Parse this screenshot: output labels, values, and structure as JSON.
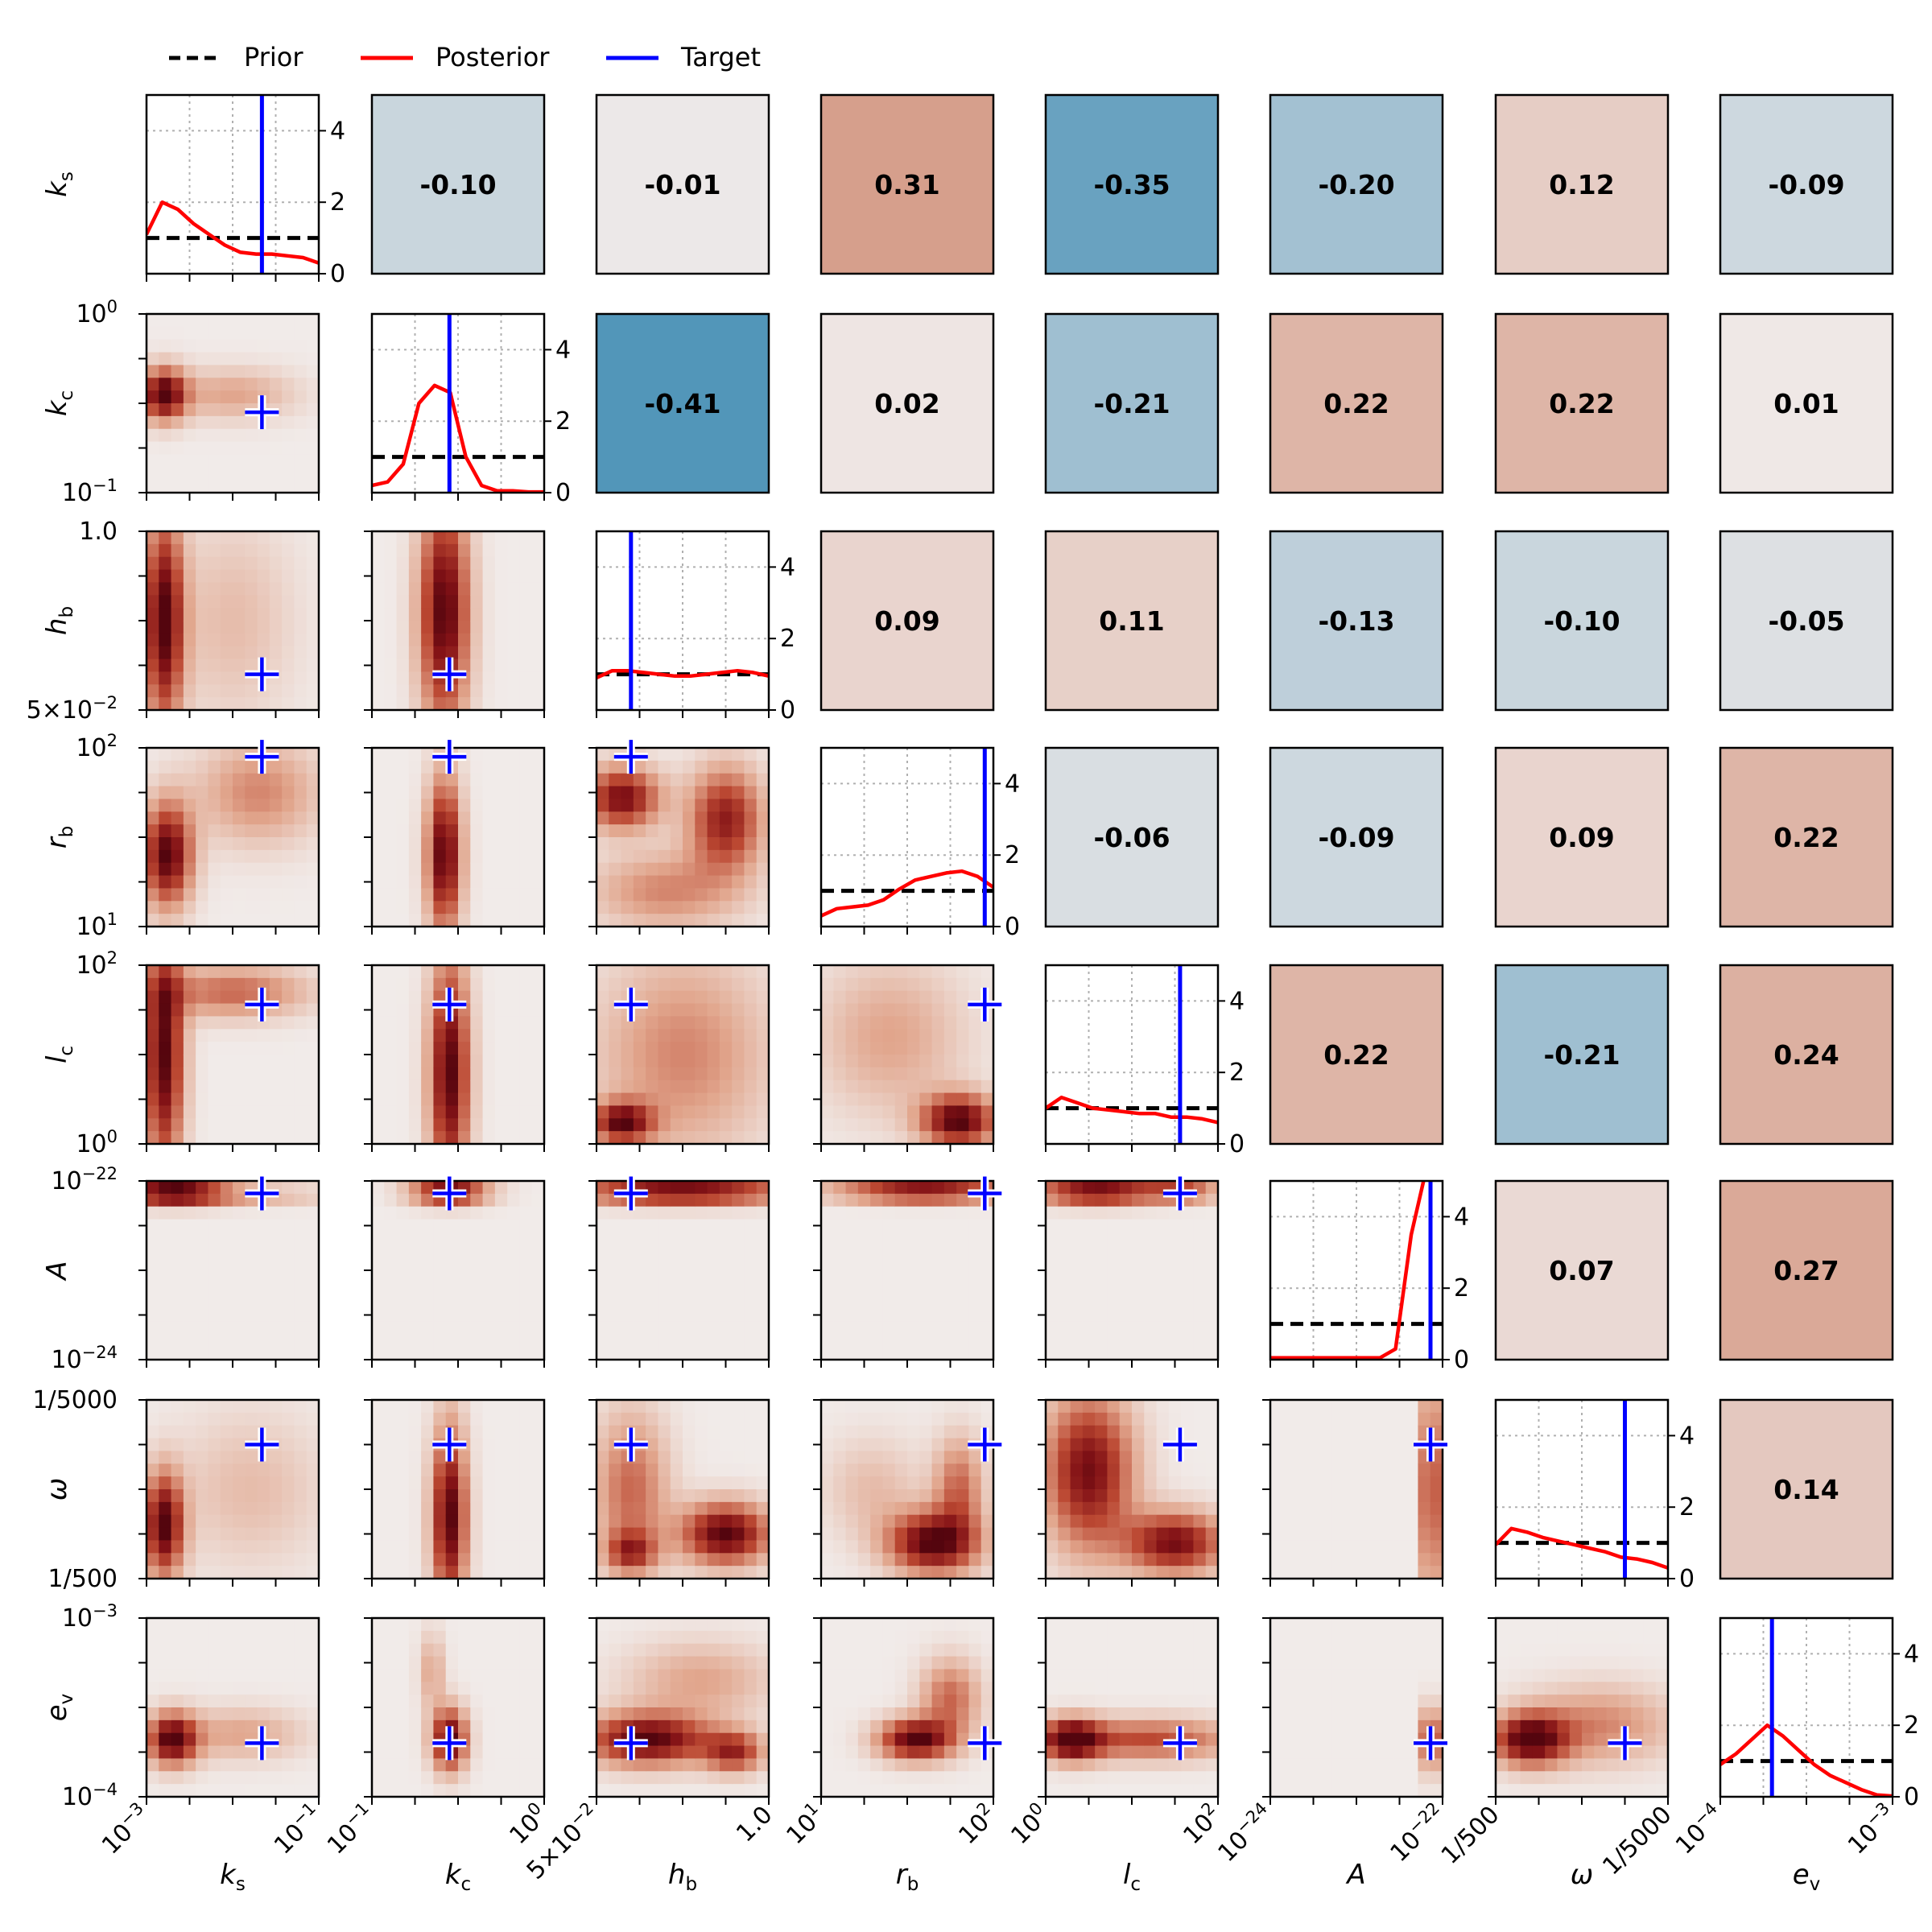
{
  "chart_data": {
    "type": "corner-plot",
    "title": "",
    "legend": [
      {
        "label": "Prior",
        "color": "#000000",
        "style": "dashed"
      },
      {
        "label": "Posterior",
        "color": "#ff0000",
        "style": "solid"
      },
      {
        "label": "Target",
        "color": "#0000ff",
        "style": "solid"
      }
    ],
    "parameters": [
      {
        "name": "k_s",
        "sym": "k",
        "sub": "s",
        "lo_label": "10^-3",
        "hi_label": "10^-1"
      },
      {
        "name": "k_c",
        "sym": "k",
        "sub": "c",
        "lo_label": "10^-1",
        "hi_label": "10^0"
      },
      {
        "name": "h_b",
        "sym": "h",
        "sub": "b",
        "lo_label": "5×10^-2",
        "hi_label": "1.0"
      },
      {
        "name": "r_b",
        "sym": "r",
        "sub": "b",
        "lo_label": "10^1",
        "hi_label": "10^2"
      },
      {
        "name": "l_c",
        "sym": "l",
        "sub": "c",
        "lo_label": "10^0",
        "hi_label": "10^2"
      },
      {
        "name": "A",
        "sym": "A",
        "sub": "",
        "lo_label": "10^-24",
        "hi_label": "10^-22"
      },
      {
        "name": "omega",
        "sym": "ω",
        "sub": "",
        "lo_label": "1/500",
        "hi_label": "1/5000"
      },
      {
        "name": "e_v",
        "sym": "e",
        "sub": "v",
        "lo_label": "10^-4",
        "hi_label": "10^-3"
      }
    ],
    "target_fraction": [
      0.67,
      0.45,
      0.2,
      0.95,
      0.78,
      0.93,
      0.75,
      0.3
    ],
    "diag_ylim": [
      0,
      5
    ],
    "diag_yticks": [
      0,
      2,
      4
    ],
    "prior_density": 1.0,
    "posterior_density": [
      [
        1.1,
        2.0,
        1.8,
        1.4,
        1.1,
        0.8,
        0.6,
        0.55,
        0.55,
        0.5,
        0.45,
        0.3
      ],
      [
        0.2,
        0.3,
        0.8,
        2.5,
        3.0,
        2.8,
        1.0,
        0.2,
        0.05,
        0.05,
        0.02,
        0.02
      ],
      [
        0.9,
        1.1,
        1.1,
        1.05,
        1.0,
        0.95,
        0.95,
        1.0,
        1.05,
        1.1,
        1.05,
        0.95
      ],
      [
        0.3,
        0.5,
        0.55,
        0.6,
        0.75,
        1.05,
        1.3,
        1.4,
        1.5,
        1.55,
        1.4,
        1.1
      ],
      [
        1.0,
        1.3,
        1.15,
        1.0,
        0.95,
        0.9,
        0.85,
        0.85,
        0.75,
        0.75,
        0.7,
        0.6
      ],
      [
        0.05,
        0.05,
        0.05,
        0.05,
        0.05,
        0.05,
        0.05,
        0.05,
        0.3,
        3.5,
        6.0,
        6.0
      ],
      [
        0.95,
        1.4,
        1.3,
        1.15,
        1.05,
        0.95,
        0.85,
        0.75,
        0.6,
        0.55,
        0.45,
        0.3
      ],
      [
        0.9,
        1.2,
        1.6,
        2.0,
        1.7,
        1.3,
        0.9,
        0.6,
        0.4,
        0.2,
        0.05,
        0.02
      ]
    ],
    "correlations": [
      {
        "row": 0,
        "col": 1,
        "value": "-0.10"
      },
      {
        "row": 0,
        "col": 2,
        "value": "-0.01"
      },
      {
        "row": 0,
        "col": 3,
        "value": "0.31"
      },
      {
        "row": 0,
        "col": 4,
        "value": "-0.35"
      },
      {
        "row": 0,
        "col": 5,
        "value": "-0.20"
      },
      {
        "row": 0,
        "col": 6,
        "value": "0.12"
      },
      {
        "row": 0,
        "col": 7,
        "value": "-0.09"
      },
      {
        "row": 1,
        "col": 2,
        "value": "-0.41"
      },
      {
        "row": 1,
        "col": 3,
        "value": "0.02"
      },
      {
        "row": 1,
        "col": 4,
        "value": "-0.21"
      },
      {
        "row": 1,
        "col": 5,
        "value": "0.22"
      },
      {
        "row": 1,
        "col": 6,
        "value": "0.22"
      },
      {
        "row": 1,
        "col": 7,
        "value": "0.01"
      },
      {
        "row": 2,
        "col": 3,
        "value": "0.09"
      },
      {
        "row": 2,
        "col": 4,
        "value": "0.11"
      },
      {
        "row": 2,
        "col": 5,
        "value": "-0.13"
      },
      {
        "row": 2,
        "col": 6,
        "value": "-0.10"
      },
      {
        "row": 2,
        "col": 7,
        "value": "-0.05"
      },
      {
        "row": 3,
        "col": 4,
        "value": "-0.06"
      },
      {
        "row": 3,
        "col": 5,
        "value": "-0.09"
      },
      {
        "row": 3,
        "col": 6,
        "value": "0.09"
      },
      {
        "row": 3,
        "col": 7,
        "value": "0.22"
      },
      {
        "row": 4,
        "col": 5,
        "value": "0.22"
      },
      {
        "row": 4,
        "col": 6,
        "value": "-0.21"
      },
      {
        "row": 4,
        "col": 7,
        "value": "0.24"
      },
      {
        "row": 5,
        "col": 6,
        "value": "0.07"
      },
      {
        "row": 5,
        "col": 7,
        "value": "0.27"
      },
      {
        "row": 6,
        "col": 7,
        "value": "0.14"
      }
    ],
    "joint_blobs": [
      {
        "row": 1,
        "col": 0,
        "blobs": [
          [
            0.1,
            0.45,
            0.09,
            0.1,
            1.0
          ],
          [
            0.5,
            0.45,
            0.25,
            0.1,
            0.3
          ]
        ]
      },
      {
        "row": 2,
        "col": 0,
        "blobs": [
          [
            0.1,
            0.5,
            0.08,
            0.4,
            1.0
          ],
          [
            0.5,
            0.5,
            0.25,
            0.4,
            0.2
          ]
        ]
      },
      {
        "row": 2,
        "col": 1,
        "blobs": [
          [
            0.42,
            0.45,
            0.1,
            0.45,
            1.0
          ]
        ]
      },
      {
        "row": 3,
        "col": 0,
        "blobs": [
          [
            0.12,
            0.6,
            0.1,
            0.2,
            1.0
          ],
          [
            0.65,
            0.25,
            0.25,
            0.2,
            0.4
          ]
        ]
      },
      {
        "row": 3,
        "col": 1,
        "blobs": [
          [
            0.42,
            0.6,
            0.07,
            0.3,
            1.0
          ]
        ]
      },
      {
        "row": 3,
        "col": 2,
        "blobs": [
          [
            0.15,
            0.28,
            0.15,
            0.12,
            0.9
          ],
          [
            0.75,
            0.4,
            0.15,
            0.2,
            0.8
          ],
          [
            0.4,
            0.8,
            0.3,
            0.15,
            0.4
          ]
        ]
      },
      {
        "row": 4,
        "col": 0,
        "blobs": [
          [
            0.1,
            0.5,
            0.08,
            0.45,
            1.0
          ],
          [
            0.5,
            0.15,
            0.3,
            0.1,
            0.5
          ]
        ]
      },
      {
        "row": 4,
        "col": 1,
        "blobs": [
          [
            0.45,
            0.6,
            0.08,
            0.45,
            1.0
          ]
        ]
      },
      {
        "row": 4,
        "col": 2,
        "blobs": [
          [
            0.15,
            0.88,
            0.12,
            0.08,
            0.9
          ],
          [
            0.5,
            0.5,
            0.35,
            0.4,
            0.4
          ]
        ]
      },
      {
        "row": 4,
        "col": 3,
        "blobs": [
          [
            0.8,
            0.87,
            0.15,
            0.1,
            1.0
          ],
          [
            0.4,
            0.4,
            0.3,
            0.3,
            0.3
          ]
        ]
      },
      {
        "row": 5,
        "col": 0,
        "blobs": [
          [
            0.15,
            0.06,
            0.2,
            0.05,
            1.0
          ],
          [
            0.5,
            0.08,
            0.4,
            0.04,
            0.3
          ]
        ]
      },
      {
        "row": 5,
        "col": 1,
        "blobs": [
          [
            0.45,
            0.06,
            0.15,
            0.05,
            1.0
          ]
        ]
      },
      {
        "row": 5,
        "col": 2,
        "blobs": [
          [
            0.5,
            0.06,
            0.45,
            0.05,
            1.0
          ]
        ]
      },
      {
        "row": 5,
        "col": 3,
        "blobs": [
          [
            0.6,
            0.06,
            0.35,
            0.04,
            1.0
          ]
        ]
      },
      {
        "row": 5,
        "col": 4,
        "blobs": [
          [
            0.3,
            0.06,
            0.25,
            0.05,
            1.0
          ],
          [
            0.8,
            0.06,
            0.15,
            0.04,
            0.6
          ]
        ]
      },
      {
        "row": 6,
        "col": 0,
        "blobs": [
          [
            0.1,
            0.7,
            0.08,
            0.2,
            1.0
          ],
          [
            0.6,
            0.5,
            0.3,
            0.3,
            0.2
          ]
        ]
      },
      {
        "row": 6,
        "col": 1,
        "blobs": [
          [
            0.45,
            0.65,
            0.07,
            0.35,
            1.0
          ]
        ]
      },
      {
        "row": 6,
        "col": 2,
        "blobs": [
          [
            0.75,
            0.75,
            0.18,
            0.12,
            1.0
          ],
          [
            0.2,
            0.5,
            0.15,
            0.3,
            0.5
          ],
          [
            0.2,
            0.85,
            0.1,
            0.08,
            0.6
          ]
        ]
      },
      {
        "row": 6,
        "col": 3,
        "blobs": [
          [
            0.65,
            0.8,
            0.18,
            0.12,
            1.0
          ],
          [
            0.8,
            0.5,
            0.1,
            0.2,
            0.5
          ],
          [
            0.3,
            0.5,
            0.2,
            0.2,
            0.2
          ]
        ]
      },
      {
        "row": 6,
        "col": 4,
        "blobs": [
          [
            0.25,
            0.4,
            0.18,
            0.3,
            0.9
          ],
          [
            0.75,
            0.8,
            0.2,
            0.12,
            0.9
          ]
        ]
      },
      {
        "row": 6,
        "col": 5,
        "blobs": [
          [
            0.93,
            0.5,
            0.03,
            0.45,
            1.0
          ]
        ]
      },
      {
        "row": 7,
        "col": 0,
        "blobs": [
          [
            0.15,
            0.68,
            0.1,
            0.1,
            1.0
          ],
          [
            0.55,
            0.65,
            0.25,
            0.1,
            0.3
          ]
        ]
      },
      {
        "row": 7,
        "col": 1,
        "blobs": [
          [
            0.45,
            0.68,
            0.07,
            0.12,
            1.0
          ],
          [
            0.35,
            0.3,
            0.05,
            0.15,
            0.3
          ]
        ]
      },
      {
        "row": 7,
        "col": 2,
        "blobs": [
          [
            0.3,
            0.68,
            0.25,
            0.1,
            1.0
          ],
          [
            0.8,
            0.75,
            0.12,
            0.08,
            0.7
          ],
          [
            0.6,
            0.35,
            0.3,
            0.15,
            0.3
          ]
        ]
      },
      {
        "row": 7,
        "col": 3,
        "blobs": [
          [
            0.55,
            0.68,
            0.15,
            0.08,
            1.0
          ],
          [
            0.75,
            0.45,
            0.12,
            0.15,
            0.5
          ]
        ]
      },
      {
        "row": 7,
        "col": 4,
        "blobs": [
          [
            0.15,
            0.68,
            0.12,
            0.08,
            1.0
          ],
          [
            0.6,
            0.68,
            0.35,
            0.08,
            0.6
          ]
        ]
      },
      {
        "row": 7,
        "col": 5,
        "blobs": [
          [
            0.93,
            0.68,
            0.03,
            0.12,
            1.0
          ]
        ]
      },
      {
        "row": 7,
        "col": 6,
        "blobs": [
          [
            0.2,
            0.68,
            0.15,
            0.1,
            1.0
          ],
          [
            0.6,
            0.6,
            0.3,
            0.15,
            0.4
          ]
        ]
      }
    ]
  }
}
